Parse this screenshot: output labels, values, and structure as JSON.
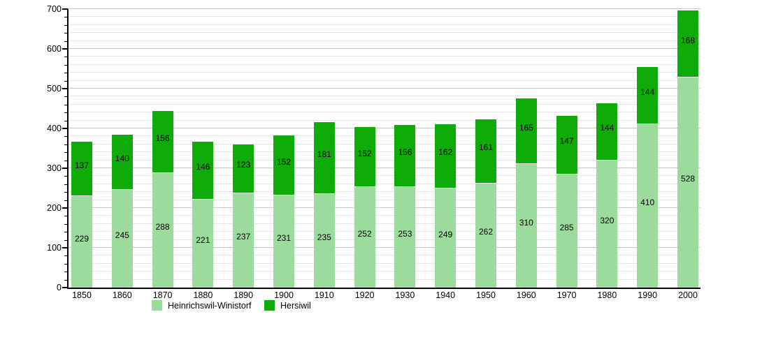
{
  "chart_data": {
    "type": "bar",
    "stacked": true,
    "title": "",
    "xlabel": "",
    "ylabel": "",
    "categories": [
      "1850",
      "1860",
      "1870",
      "1880",
      "1890",
      "1900",
      "1910",
      "1920",
      "1930",
      "1940",
      "1950",
      "1960",
      "1970",
      "1980",
      "1990",
      "2000"
    ],
    "series": [
      {
        "name": "Heinrichswil-Winistorf",
        "color": "#9bdb9b",
        "values": [
          229,
          245,
          288,
          221,
          237,
          231,
          235,
          252,
          253,
          249,
          262,
          310,
          285,
          320,
          410,
          528
        ]
      },
      {
        "name": "Hersiwil",
        "color": "#0fab08",
        "values": [
          137,
          140,
          156,
          146,
          123,
          152,
          181,
          152,
          156,
          162,
          161,
          165,
          147,
          144,
          144,
          168
        ]
      }
    ],
    "ylim": [
      0,
      700
    ],
    "yticks": [
      0,
      100,
      200,
      300,
      400,
      500,
      600,
      700
    ],
    "minor_tick_step": 20,
    "grid": true,
    "legend_position": "bottom",
    "value_labels": true,
    "colors": {
      "axis": "#000000",
      "grid_minor": "#e4e4e4",
      "grid_major": "#c6c6c6",
      "segment_separator": "#ffffff",
      "label_text": "#000000",
      "background": "#ffffff"
    }
  }
}
